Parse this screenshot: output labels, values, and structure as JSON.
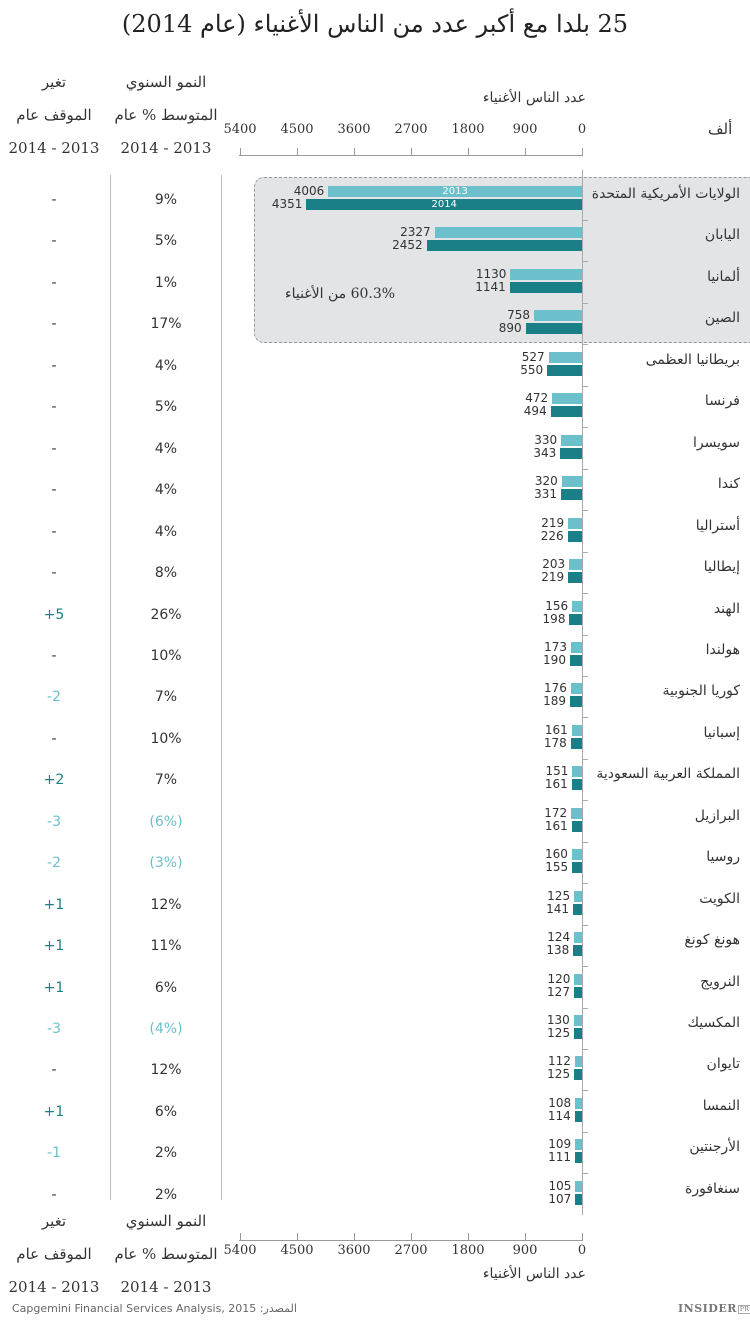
{
  "title": "25 بلدا مع أكبر عدد من الناس الأغنياء (عام 2014)",
  "headers": {
    "change_col": [
      "تغير",
      "الموقف عام",
      "2014 - 2013"
    ],
    "growth_col": [
      "النمو السنوي",
      "المتوسط % عام",
      "2014 - 2013"
    ],
    "axis_title": "عدد الناس الأغنياء",
    "unit": "ألف"
  },
  "axis": {
    "ticks": [
      "5400",
      "4500",
      "3600",
      "2700",
      "1800",
      "900",
      "0"
    ]
  },
  "annotation": "60.3% من الأغنياء",
  "bar_labels": {
    "y2013": "2013",
    "y2014": "2014"
  },
  "source": "Capgemini Financial Services Analysis, 2015 :المصدر",
  "logo": {
    "main": "INSIDER",
    "sub": "PRO"
  },
  "colors": {
    "bar2013": "#6cc0cb",
    "bar2014": "#1a7f86",
    "highlight": "#e3e4e5",
    "positive": "#1a7f86",
    "negative": "#6cc0cb"
  },
  "rows": [
    {
      "country": "الولايات الأمريكية المتحدة",
      "v2013": "4006",
      "v2014": "4351",
      "growth": "9%",
      "change": "-"
    },
    {
      "country": "اليابان",
      "v2013": "2327",
      "v2014": "2452",
      "growth": "5%",
      "change": "-"
    },
    {
      "country": "ألمانيا",
      "v2013": "1130",
      "v2014": "1141",
      "growth": "1%",
      "change": "-"
    },
    {
      "country": "الصين",
      "v2013": "758",
      "v2014": "890",
      "growth": "17%",
      "change": "-"
    },
    {
      "country": "بريطانيا العظمى",
      "v2013": "527",
      "v2014": "550",
      "growth": "4%",
      "change": "-"
    },
    {
      "country": "فرنسا",
      "v2013": "472",
      "v2014": "494",
      "growth": "5%",
      "change": "-"
    },
    {
      "country": "سويسرا",
      "v2013": "330",
      "v2014": "343",
      "growth": "4%",
      "change": "-"
    },
    {
      "country": "كندا",
      "v2013": "320",
      "v2014": "331",
      "growth": "4%",
      "change": "-"
    },
    {
      "country": "أستراليا",
      "v2013": "219",
      "v2014": "226",
      "growth": "4%",
      "change": "-"
    },
    {
      "country": "إيطاليا",
      "v2013": "203",
      "v2014": "219",
      "growth": "8%",
      "change": "-"
    },
    {
      "country": "الهند",
      "v2013": "156",
      "v2014": "198",
      "growth": "26%",
      "change": "+5"
    },
    {
      "country": "هولندا",
      "v2013": "173",
      "v2014": "190",
      "growth": "10%",
      "change": "-"
    },
    {
      "country": "كوريا الجنوبية",
      "v2013": "176",
      "v2014": "189",
      "growth": "7%",
      "change": "-2"
    },
    {
      "country": "إسبانيا",
      "v2013": "161",
      "v2014": "178",
      "growth": "10%",
      "change": "-"
    },
    {
      "country": "المملكة العربية السعودية",
      "v2013": "151",
      "v2014": "161",
      "growth": "7%",
      "change": "+2"
    },
    {
      "country": "البرازيل",
      "v2013": "172",
      "v2014": "161",
      "growth": "(6%)",
      "change": "-3"
    },
    {
      "country": "روسيا",
      "v2013": "160",
      "v2014": "155",
      "growth": "(3%)",
      "change": "-2"
    },
    {
      "country": "الكويت",
      "v2013": "125",
      "v2014": "141",
      "growth": "12%",
      "change": "+1"
    },
    {
      "country": "هونغ كونغ",
      "v2013": "124",
      "v2014": "138",
      "growth": "11%",
      "change": "+1"
    },
    {
      "country": "النرويج",
      "v2013": "120",
      "v2014": "127",
      "growth": "6%",
      "change": "+1"
    },
    {
      "country": "المكسيك",
      "v2013": "130",
      "v2014": "125",
      "growth": "(4%)",
      "change": "-3"
    },
    {
      "country": "تايوان",
      "v2013": "112",
      "v2014": "125",
      "growth": "12%",
      "change": "-"
    },
    {
      "country": "النمسا",
      "v2013": "108",
      "v2014": "114",
      "growth": "6%",
      "change": "+1"
    },
    {
      "country": "الأرجنتين",
      "v2013": "109",
      "v2014": "111",
      "growth": "2%",
      "change": "-1"
    },
    {
      "country": "سنغافورة",
      "v2013": "105",
      "v2014": "107",
      "growth": "2%",
      "change": "-"
    }
  ],
  "chart_data": {
    "type": "bar",
    "orientation": "horizontal",
    "title": "25 بلدا مع أكبر عدد من الناس الأغنياء (عام 2014)",
    "xlabel": "عدد الناس الأغنياء",
    "unit": "ألف",
    "xlim": [
      0,
      5400
    ],
    "xticks": [
      0,
      900,
      1800,
      2700,
      3600,
      4500,
      5400
    ],
    "grid": false,
    "legend": "inline labels inside top bars (2013, 2014)",
    "categories": [
      "الولايات الأمريكية المتحدة",
      "اليابان",
      "ألمانيا",
      "الصين",
      "بريطانيا العظمى",
      "فرنسا",
      "سويسرا",
      "كندا",
      "أستراليا",
      "إيطاليا",
      "الهند",
      "هولندا",
      "كوريا الجنوبية",
      "إسبانيا",
      "المملكة العربية السعودية",
      "البرازيل",
      "روسيا",
      "الكويت",
      "هونغ كونغ",
      "النرويج",
      "المكسيك",
      "تايوان",
      "النمسا",
      "الأرجنتين",
      "سنغافورة"
    ],
    "series": [
      {
        "name": "2013",
        "color": "#6cc0cb",
        "values": [
          4006,
          2327,
          1130,
          758,
          527,
          472,
          330,
          320,
          219,
          203,
          156,
          173,
          176,
          161,
          151,
          172,
          160,
          125,
          124,
          120,
          130,
          112,
          108,
          109,
          105
        ]
      },
      {
        "name": "2014",
        "color": "#1a7f86",
        "values": [
          4351,
          2452,
          1141,
          890,
          550,
          494,
          343,
          331,
          226,
          219,
          198,
          190,
          189,
          178,
          161,
          161,
          155,
          141,
          138,
          127,
          125,
          125,
          114,
          111,
          107
        ]
      }
    ],
    "table_columns": {
      "avg_annual_growth_2013_2014": [
        "9%",
        "5%",
        "1%",
        "17%",
        "4%",
        "5%",
        "4%",
        "4%",
        "4%",
        "8%",
        "26%",
        "10%",
        "7%",
        "10%",
        "7%",
        "(6%)",
        "(3%)",
        "12%",
        "11%",
        "6%",
        "(4%)",
        "12%",
        "6%",
        "2%",
        "2%"
      ],
      "rank_change_2013_2014": [
        "-",
        "-",
        "-",
        "-",
        "-",
        "-",
        "-",
        "-",
        "-",
        "-",
        "+5",
        "-",
        "-2",
        "-",
        "+2",
        "-3",
        "-2",
        "+1",
        "+1",
        "+1",
        "-3",
        "-",
        "+1",
        "-1",
        "-"
      ]
    },
    "annotations": [
      "60.3% من الأغنياء (top 4 countries highlighted)"
    ]
  }
}
